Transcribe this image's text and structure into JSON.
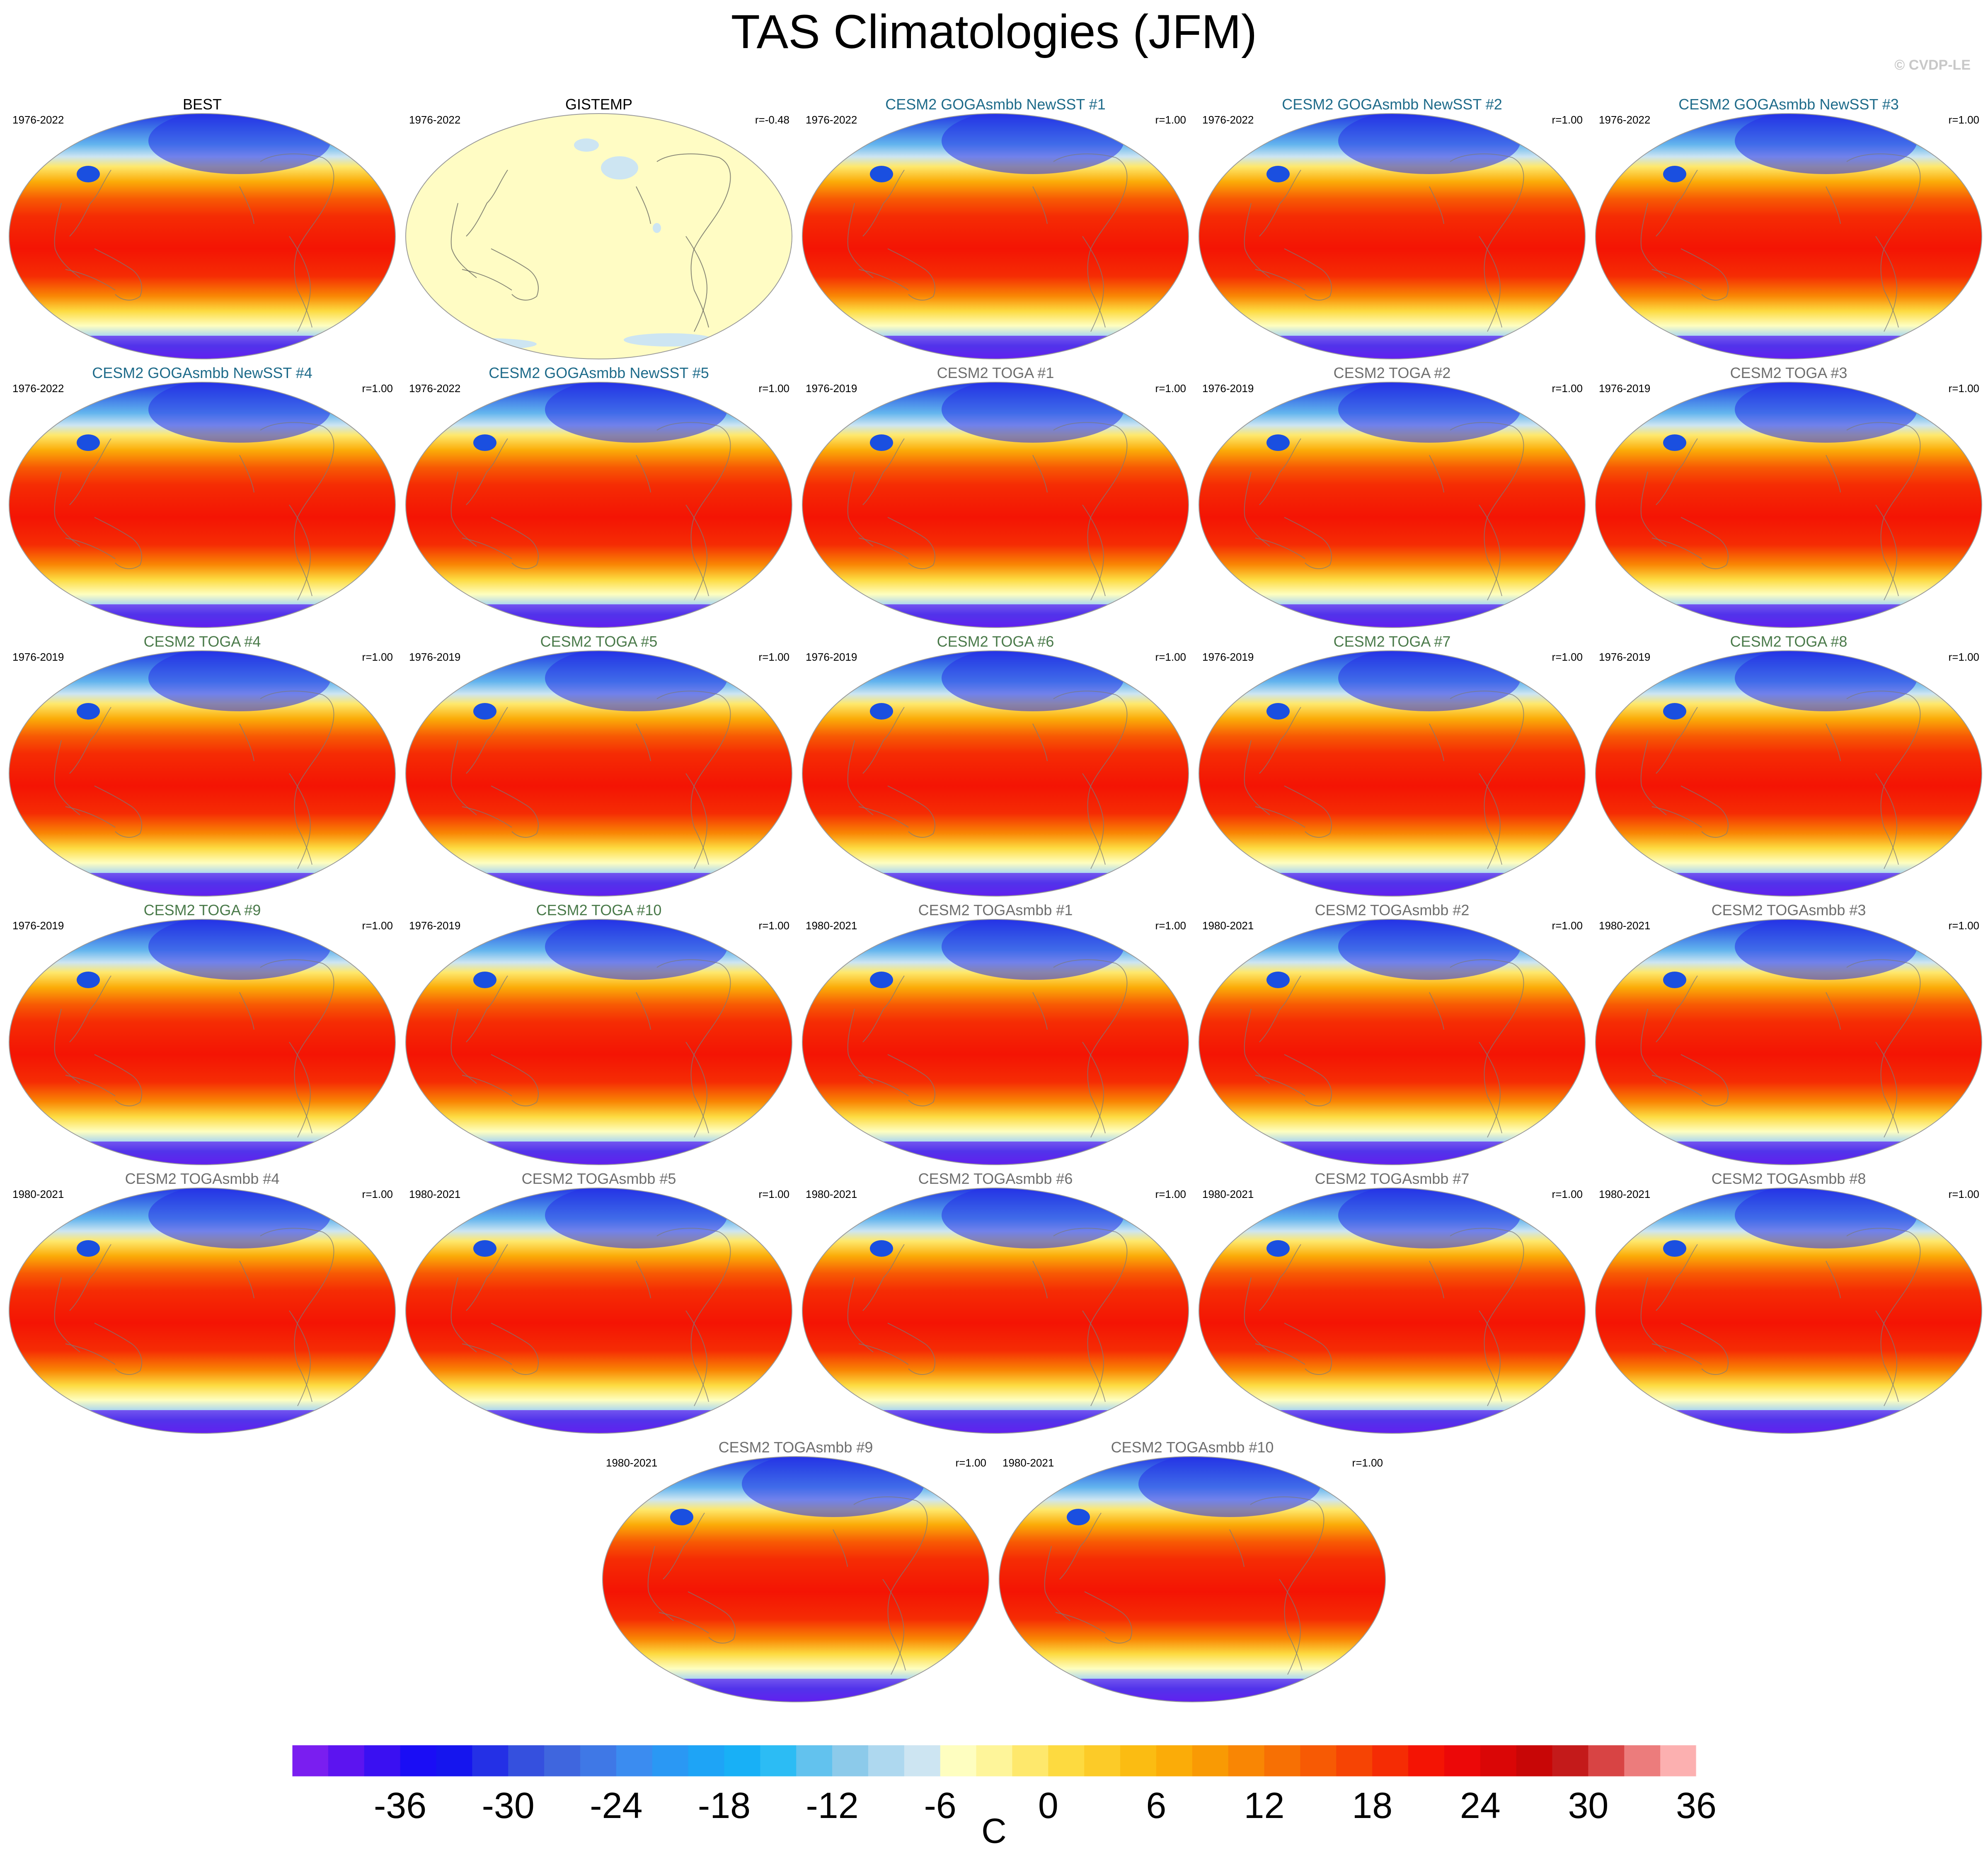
{
  "title": "TAS Climatologies (JFM)",
  "watermark": "© CVDP-LE",
  "colors": {
    "obs_title": "#000000",
    "goga_title": "#1e6b8a",
    "toga_title": "#4a7a4a",
    "togasmbb_title": "#6e6e6e"
  },
  "panels": [
    {
      "title": "BEST",
      "years": "1976-2022",
      "r": "",
      "style": "observed",
      "group": "obs"
    },
    {
      "title": "GISTEMP",
      "years": "1976-2022",
      "r": "r=-0.48",
      "style": "gistemp",
      "group": "obs"
    },
    {
      "title": "CESM2 GOGAsmbb NewSST #1",
      "years": "1976-2022",
      "r": "r=1.00",
      "style": "model",
      "group": "goga"
    },
    {
      "title": "CESM2 GOGAsmbb NewSST #2",
      "years": "1976-2022",
      "r": "r=1.00",
      "style": "model",
      "group": "goga"
    },
    {
      "title": "CESM2 GOGAsmbb NewSST #3",
      "years": "1976-2022",
      "r": "r=1.00",
      "style": "model",
      "group": "goga"
    },
    {
      "title": "CESM2 GOGAsmbb NewSST #4",
      "years": "1976-2022",
      "r": "r=1.00",
      "style": "model",
      "group": "goga"
    },
    {
      "title": "CESM2 GOGAsmbb NewSST #5",
      "years": "1976-2022",
      "r": "r=1.00",
      "style": "model",
      "group": "goga"
    },
    {
      "title": "CESM2 TOGA #1",
      "years": "1976-2019",
      "r": "r=1.00",
      "style": "model",
      "group": "togasmbb"
    },
    {
      "title": "CESM2 TOGA #2",
      "years": "1976-2019",
      "r": "r=1.00",
      "style": "model",
      "group": "togasmbb"
    },
    {
      "title": "CESM2 TOGA #3",
      "years": "1976-2019",
      "r": "r=1.00",
      "style": "model",
      "group": "togasmbb"
    },
    {
      "title": "CESM2 TOGA #4",
      "years": "1976-2019",
      "r": "r=1.00",
      "style": "model",
      "group": "toga"
    },
    {
      "title": "CESM2 TOGA #5",
      "years": "1976-2019",
      "r": "r=1.00",
      "style": "model",
      "group": "toga"
    },
    {
      "title": "CESM2 TOGA #6",
      "years": "1976-2019",
      "r": "r=1.00",
      "style": "model",
      "group": "toga"
    },
    {
      "title": "CESM2 TOGA #7",
      "years": "1976-2019",
      "r": "r=1.00",
      "style": "model",
      "group": "toga"
    },
    {
      "title": "CESM2 TOGA #8",
      "years": "1976-2019",
      "r": "r=1.00",
      "style": "model",
      "group": "toga"
    },
    {
      "title": "CESM2 TOGA #9",
      "years": "1976-2019",
      "r": "r=1.00",
      "style": "model",
      "group": "toga"
    },
    {
      "title": "CESM2 TOGA #10",
      "years": "1976-2019",
      "r": "r=1.00",
      "style": "model",
      "group": "toga"
    },
    {
      "title": "CESM2 TOGAsmbb #1",
      "years": "1980-2021",
      "r": "r=1.00",
      "style": "model",
      "group": "togasmbb"
    },
    {
      "title": "CESM2 TOGAsmbb #2",
      "years": "1980-2021",
      "r": "r=1.00",
      "style": "model",
      "group": "togasmbb"
    },
    {
      "title": "CESM2 TOGAsmbb #3",
      "years": "1980-2021",
      "r": "r=1.00",
      "style": "model",
      "group": "togasmbb"
    },
    {
      "title": "CESM2 TOGAsmbb #4",
      "years": "1980-2021",
      "r": "r=1.00",
      "style": "model",
      "group": "togasmbb"
    },
    {
      "title": "CESM2 TOGAsmbb #5",
      "years": "1980-2021",
      "r": "r=1.00",
      "style": "model",
      "group": "togasmbb"
    },
    {
      "title": "CESM2 TOGAsmbb #6",
      "years": "1980-2021",
      "r": "r=1.00",
      "style": "model",
      "group": "togasmbb"
    },
    {
      "title": "CESM2 TOGAsmbb #7",
      "years": "1980-2021",
      "r": "r=1.00",
      "style": "model",
      "group": "togasmbb"
    },
    {
      "title": "CESM2 TOGAsmbb #8",
      "years": "1980-2021",
      "r": "r=1.00",
      "style": "model",
      "group": "togasmbb"
    },
    {
      "title": "CESM2 TOGAsmbb #9",
      "years": "1980-2021",
      "r": "r=1.00",
      "style": "model",
      "group": "togasmbb"
    },
    {
      "title": "CESM2 TOGAsmbb #10",
      "years": "1980-2021",
      "r": "r=1.00",
      "style": "model",
      "group": "togasmbb"
    }
  ],
  "colorbar": {
    "unit": "C",
    "tick_labels": [
      "-36",
      "-30",
      "-24",
      "-18",
      "-12",
      "-6",
      "0",
      "6",
      "12",
      "18",
      "24",
      "30",
      "36"
    ],
    "colors": [
      "#7a1ef0",
      "#5c14f0",
      "#3a10f2",
      "#1a0df5",
      "#1515ee",
      "#2430e6",
      "#3550de",
      "#3f66de",
      "#3f78e6",
      "#3b8cf0",
      "#2a98f4",
      "#1ea4f6",
      "#18b0f6",
      "#2cbcf4",
      "#62c2ee",
      "#8ccaea",
      "#aed8ef",
      "#cde5f2",
      "#fefec0",
      "#fef59a",
      "#fee86c",
      "#fdda40",
      "#fccb28",
      "#fbbc12",
      "#fbac08",
      "#f99a04",
      "#f98604",
      "#f77004",
      "#f75a04",
      "#f64404",
      "#f52c04",
      "#f41404",
      "#ec0808",
      "#da0606",
      "#c80606",
      "#c41a1a",
      "#d84444",
      "#ec7c7c",
      "#fcb0b0"
    ]
  }
}
